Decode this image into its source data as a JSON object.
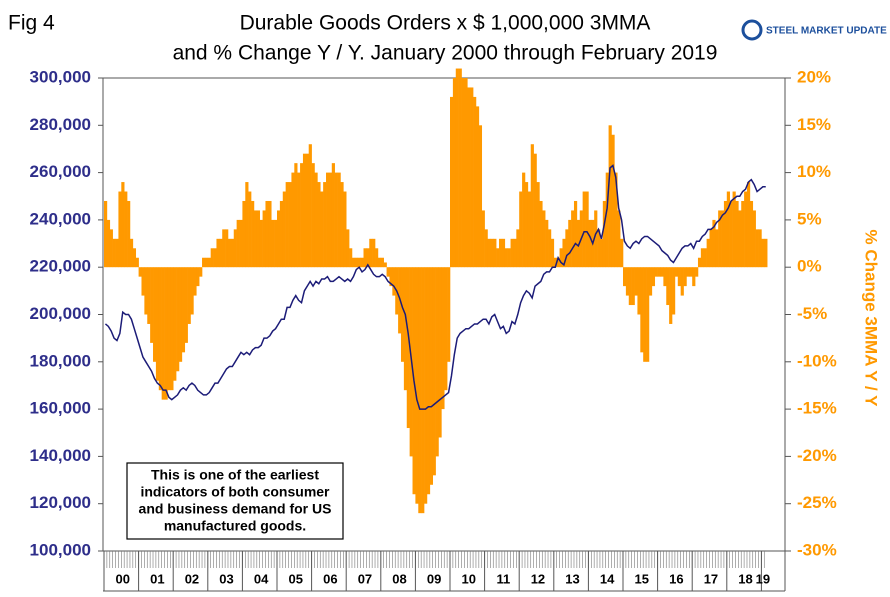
{
  "chart_data": {
    "type": "bar-line",
    "fig_label": "Fig 4",
    "title": [
      "Durable Goods Orders x $ 1,000,000 3MMA",
      "and % Change Y / Y. January 2000 through February 2019"
    ],
    "logo": "STEEL MARKET UPDATE",
    "y2_label": "% Change 3MMA Y / Y",
    "annotation": [
      "This is one of the earliest",
      "indicators of both consumer",
      "and business demand for US",
      "manufactured goods."
    ],
    "categories": [
      null,
      null,
      null,
      null,
      null,
      null,
      "00",
      null,
      null,
      null,
      null,
      null,
      null,
      null,
      null,
      null,
      null,
      null,
      "01",
      null,
      null,
      null,
      null,
      null,
      null,
      null,
      null,
      null,
      null,
      null,
      "02",
      null,
      null,
      null,
      null,
      null,
      null,
      null,
      null,
      null,
      null,
      null,
      "03",
      null,
      null,
      null,
      null,
      null,
      null,
      null,
      null,
      null,
      null,
      null,
      "04",
      null,
      null,
      null,
      null,
      null,
      null,
      null,
      null,
      null,
      null,
      null,
      "05",
      null,
      null,
      null,
      null,
      null,
      null,
      null,
      null,
      null,
      null,
      null,
      "06",
      null,
      null,
      null,
      null,
      null,
      null,
      null,
      null,
      null,
      null,
      null,
      "07",
      null,
      null,
      null,
      null,
      null,
      null,
      null,
      null,
      null,
      null,
      null,
      "08",
      null,
      null,
      null,
      null,
      null,
      null,
      null,
      null,
      null,
      null,
      null,
      "09",
      null,
      null,
      null,
      null,
      null,
      null,
      null,
      null,
      null,
      null,
      null,
      "10",
      null,
      null,
      null,
      null,
      null,
      null,
      null,
      null,
      null,
      null,
      null,
      "11",
      null,
      null,
      null,
      null,
      null,
      null,
      null,
      null,
      null,
      null,
      null,
      "12",
      null,
      null,
      null,
      null,
      null,
      null,
      null,
      null,
      null,
      null,
      null,
      "13",
      null,
      null,
      null,
      null,
      null,
      null,
      null,
      null,
      null,
      null,
      null,
      "14",
      null,
      null,
      null,
      null,
      null,
      null,
      null,
      null,
      null,
      null,
      null,
      "15",
      null,
      null,
      null,
      null,
      null,
      null,
      null,
      null,
      null,
      null,
      null,
      "16",
      null,
      null,
      null,
      null,
      null,
      null,
      null,
      null,
      null,
      null,
      null,
      "17",
      null,
      null,
      null,
      null,
      null,
      null,
      null,
      null,
      null,
      null,
      null,
      "18",
      null,
      null,
      null,
      null,
      null,
      "19",
      null
    ],
    "series": [
      {
        "type": "line",
        "color": "#1c1c78",
        "values": [
          196000,
          195000,
          193000,
          190000,
          189000,
          192000,
          201000,
          200000,
          200000,
          198000,
          194000,
          190000,
          186000,
          182000,
          180000,
          178000,
          176000,
          173000,
          171000,
          170000,
          168000,
          168000,
          165000,
          164000,
          165000,
          166000,
          168000,
          169000,
          168000,
          170000,
          171000,
          170000,
          168000,
          167000,
          166000,
          166000,
          167000,
          169000,
          171000,
          171000,
          173000,
          175000,
          177000,
          178000,
          178000,
          180000,
          182000,
          184000,
          183000,
          184000,
          183000,
          185000,
          186000,
          186000,
          187000,
          190000,
          190000,
          191000,
          193000,
          194000,
          196000,
          198000,
          198000,
          203000,
          203000,
          206000,
          208000,
          206000,
          205000,
          210000,
          212000,
          214000,
          212000,
          214000,
          213000,
          215000,
          215000,
          216000,
          214000,
          214000,
          215000,
          216000,
          215000,
          214000,
          215000,
          214000,
          216000,
          219000,
          220000,
          218000,
          219000,
          221000,
          219000,
          217000,
          216000,
          216000,
          217000,
          216000,
          214000,
          213000,
          212000,
          210000,
          207000,
          203000,
          200000,
          192000,
          182000,
          172000,
          164000,
          160000,
          160000,
          160000,
          161000,
          161000,
          162000,
          163000,
          164000,
          165000,
          166000,
          167000,
          174000,
          183000,
          190000,
          192000,
          193000,
          194000,
          194000,
          195000,
          196000,
          196000,
          197000,
          198000,
          198000,
          196000,
          199000,
          200000,
          197000,
          194000,
          195000,
          192000,
          193000,
          197000,
          196000,
          200000,
          205000,
          208000,
          210000,
          209000,
          207000,
          212000,
          213000,
          214000,
          217000,
          218000,
          218000,
          220000,
          220000,
          224000,
          222000,
          221000,
          225000,
          226000,
          228000,
          230000,
          229000,
          232000,
          235000,
          235000,
          233000,
          230000,
          234000,
          236000,
          232000,
          238000,
          245000,
          262000,
          263000,
          258000,
          245000,
          240000,
          231000,
          229000,
          228000,
          230000,
          231000,
          230000,
          232000,
          233000,
          233000,
          232000,
          231000,
          230000,
          229000,
          227000,
          226000,
          225000,
          223000,
          222000,
          224000,
          226000,
          228000,
          229000,
          229000,
          230000,
          228000,
          231000,
          231000,
          233000,
          234000,
          236000,
          236000,
          237000,
          239000,
          240000,
          242000,
          243000,
          245000,
          248000,
          249000,
          250000,
          250000,
          252000,
          253000,
          256000,
          257000,
          255000,
          252000,
          253000,
          254000,
          254000
        ]
      },
      {
        "type": "bar",
        "axis": "y2",
        "color": "#ff9900",
        "values": [
          7,
          5,
          4,
          3,
          3,
          8,
          9,
          8,
          7,
          3,
          2,
          1,
          -1,
          -3,
          -5,
          -6,
          -8,
          -10,
          -12,
          -13,
          -14,
          -14,
          -13,
          -13,
          -12,
          -11,
          -10,
          -9,
          -8,
          -6,
          -5,
          -3,
          -2,
          -1,
          1,
          1,
          1,
          2,
          2,
          3,
          3,
          4,
          4,
          3,
          3,
          4,
          5,
          5,
          7,
          9,
          8,
          7,
          6,
          6,
          5,
          6,
          7,
          7,
          5,
          5,
          6,
          7,
          8,
          9,
          9,
          10,
          11,
          10,
          11,
          12,
          12,
          13,
          11,
          10,
          9,
          8,
          9,
          10,
          10,
          11,
          10,
          10,
          9,
          8,
          4,
          2,
          1,
          1,
          1,
          1,
          2,
          2,
          3,
          3,
          2,
          1,
          1,
          0.5,
          -1,
          -2,
          -3,
          -5,
          -7,
          -10,
          -13,
          -17,
          -20,
          -24,
          -25,
          -26,
          -26,
          -25,
          -24,
          -23,
          -22,
          -20,
          -18,
          -15,
          -13,
          -10,
          18,
          20,
          21,
          21,
          20,
          20,
          19,
          19,
          18,
          17,
          15,
          6,
          4,
          3,
          3,
          3,
          2,
          3,
          3,
          2,
          2,
          3,
          3,
          4,
          8,
          10,
          9,
          8,
          13,
          12,
          9,
          7,
          6,
          5,
          4,
          3,
          1,
          1,
          2,
          3,
          4,
          5,
          6,
          7,
          5,
          6,
          8,
          8,
          5,
          5,
          6,
          4,
          3,
          7,
          10,
          15,
          14,
          10,
          6,
          3,
          -2,
          -3,
          -4,
          -4,
          -3,
          -5,
          -9,
          -10,
          -10,
          -3,
          -2,
          -1,
          -1,
          -1,
          -2,
          -4,
          -6,
          -5,
          -1,
          -2,
          -3,
          -2,
          -1,
          -1,
          -2,
          -1,
          1,
          2,
          2,
          3,
          4,
          5,
          4,
          6,
          6,
          7,
          8,
          7,
          8,
          7,
          6,
          7,
          8,
          9,
          7,
          6,
          4,
          4,
          3,
          3
        ]
      }
    ],
    "ylim": [
      100000,
      300000
    ],
    "yticks": [
      {
        "value": 100000,
        "label": "100,000"
      },
      {
        "value": 120000,
        "label": "120,000"
      },
      {
        "value": 140000,
        "label": "140,000"
      },
      {
        "value": 160000,
        "label": "160,000"
      },
      {
        "value": 180000,
        "label": "180,000"
      },
      {
        "value": 200000,
        "label": "200,000"
      },
      {
        "value": 220000,
        "label": "220,000"
      },
      {
        "value": 240000,
        "label": "240,000"
      },
      {
        "value": 260000,
        "label": "260,000"
      },
      {
        "value": 280000,
        "label": "280,000"
      },
      {
        "value": 300000,
        "label": "300,000"
      }
    ],
    "y2lim": [
      -30,
      20
    ],
    "y2ticks": [
      {
        "value": -30,
        "label": "-30%"
      },
      {
        "value": -25,
        "label": "-25%"
      },
      {
        "value": -20,
        "label": "-20%"
      },
      {
        "value": -15,
        "label": "-15%"
      },
      {
        "value": -10,
        "label": "-10%"
      },
      {
        "value": -5,
        "label": "-5%"
      },
      {
        "value": 0,
        "label": "0%"
      },
      {
        "value": 5,
        "label": "5%"
      },
      {
        "value": 10,
        "label": "10%"
      },
      {
        "value": 15,
        "label": "15%"
      },
      {
        "value": 20,
        "label": "20%"
      }
    ],
    "y_color": "#2e2e8a",
    "y2_color": "#ff9900",
    "grid": false
  }
}
